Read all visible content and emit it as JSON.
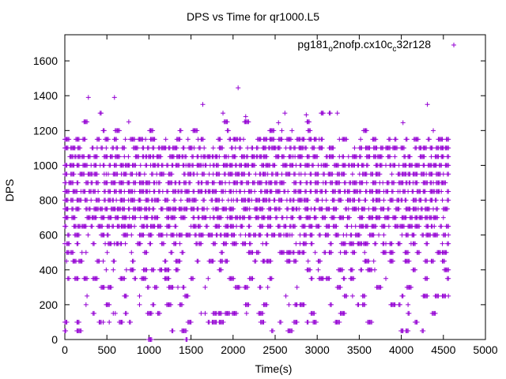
{
  "chart_data": {
    "type": "scatter",
    "title": "DPS vs Time for qr1000.L5",
    "xlabel": "Time(s)",
    "ylabel": "DPS",
    "xlim": [
      0,
      5000
    ],
    "ylim": [
      0,
      1750
    ],
    "xticks": [
      0,
      500,
      1000,
      1500,
      2000,
      2500,
      3000,
      3500,
      4000,
      4500,
      5000
    ],
    "yticks": [
      0,
      200,
      400,
      600,
      800,
      1000,
      1200,
      1400,
      1600
    ],
    "grid": false,
    "legend_position": "top-right",
    "marker": "+",
    "color": "#9400d3",
    "series": [
      {
        "legend_parts": [
          "pg181",
          "o",
          "2nofp.cx10c",
          "c",
          "32r128"
        ],
        "x_extent": [
          0,
          4560
        ],
        "levels": [
          {
            "y": 0,
            "density": 0.02
          },
          {
            "y": 50,
            "density": 0.05
          },
          {
            "y": 100,
            "density": 0.08
          },
          {
            "y": 150,
            "density": 0.1
          },
          {
            "y": 200,
            "density": 0.12
          },
          {
            "y": 250,
            "density": 0.08
          },
          {
            "y": 300,
            "density": 0.1
          },
          {
            "y": 350,
            "density": 0.12
          },
          {
            "y": 400,
            "density": 0.14
          },
          {
            "y": 450,
            "density": 0.18
          },
          {
            "y": 500,
            "density": 0.24
          },
          {
            "y": 550,
            "density": 0.32
          },
          {
            "y": 600,
            "density": 0.45
          },
          {
            "y": 650,
            "density": 0.55
          },
          {
            "y": 700,
            "density": 0.58
          },
          {
            "y": 750,
            "density": 0.62
          },
          {
            "y": 800,
            "density": 0.7
          },
          {
            "y": 850,
            "density": 0.8
          },
          {
            "y": 900,
            "density": 0.82
          },
          {
            "y": 950,
            "density": 0.72
          },
          {
            "y": 1000,
            "density": 0.85
          },
          {
            "y": 1050,
            "density": 0.55
          },
          {
            "y": 1100,
            "density": 0.45
          },
          {
            "y": 1150,
            "density": 0.35
          },
          {
            "y": 1200,
            "density": 0.08
          },
          {
            "y": 1250,
            "density": 0.04
          },
          {
            "y": 1300,
            "density": 0.02
          }
        ],
        "outliers": [
          {
            "x": 280,
            "y": 1390
          },
          {
            "x": 590,
            "y": 1390
          },
          {
            "x": 2060,
            "y": 1445
          },
          {
            "x": 1640,
            "y": 1350
          },
          {
            "x": 4310,
            "y": 1350
          },
          {
            "x": 1880,
            "y": 1300
          },
          {
            "x": 2150,
            "y": 1280
          },
          {
            "x": 2870,
            "y": 1290
          },
          {
            "x": 4020,
            "y": 1245
          },
          {
            "x": 2540,
            "y": 1245
          },
          {
            "x": 2700,
            "y": 1200
          },
          {
            "x": 760,
            "y": 1250
          },
          {
            "x": 30,
            "y": 750
          },
          {
            "x": 50,
            "y": 550
          },
          {
            "x": 20,
            "y": 450
          },
          {
            "x": 10,
            "y": 50
          },
          {
            "x": 4560,
            "y": 250
          }
        ]
      }
    ]
  }
}
